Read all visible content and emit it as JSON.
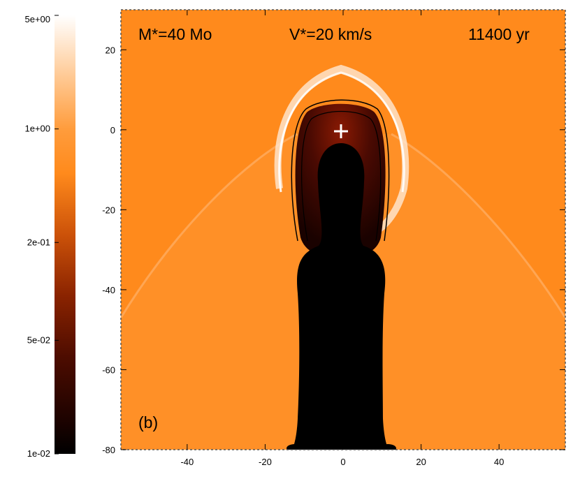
{
  "chart_data": {
    "type": "heatmap",
    "title": "",
    "xlabel": "",
    "ylabel": "",
    "xlim": [
      -57,
      57
    ],
    "ylim": [
      -80,
      30
    ],
    "x_ticks": [
      {
        "value": -40,
        "label": "-40"
      },
      {
        "value": -20,
        "label": "-20"
      },
      {
        "value": 0,
        "label": "0"
      },
      {
        "value": 20,
        "label": "20"
      },
      {
        "value": 40,
        "label": "40"
      }
    ],
    "y_ticks": [
      {
        "value": 20,
        "label": "20"
      },
      {
        "value": 0,
        "label": "0"
      },
      {
        "value": -20,
        "label": "-20"
      },
      {
        "value": -40,
        "label": "-40"
      },
      {
        "value": -60,
        "label": "-60"
      },
      {
        "value": -80,
        "label": "-80"
      }
    ],
    "colorbar": {
      "scale": "log",
      "range": [
        0.01,
        5
      ],
      "ticks": [
        {
          "value": 5,
          "label": "5e+00"
        },
        {
          "value": 1,
          "label": "1e+00"
        },
        {
          "value": 0.2,
          "label": "2e-01"
        },
        {
          "value": 0.05,
          "label": "5e-02"
        },
        {
          "value": 0.01,
          "label": "1e-02"
        }
      ],
      "colors": [
        "#000000",
        "#2a0500",
        "#6e1200",
        "#b03a05",
        "#e46b10",
        "#ff8a1c",
        "#ffa855",
        "#ffd4a8",
        "#ffffff"
      ]
    },
    "annotations": {
      "mass": "M*=40 Mo",
      "velocity": "V*=20 km/s",
      "time": "11400 yr",
      "panel": "(b)"
    },
    "star_position": [
      0,
      0
    ]
  },
  "colors": {
    "ambient": "#ff8a1c",
    "cavity": "#000000",
    "shell": "#ffe6cc",
    "contour": "#000000",
    "marker": "#ffffff"
  }
}
